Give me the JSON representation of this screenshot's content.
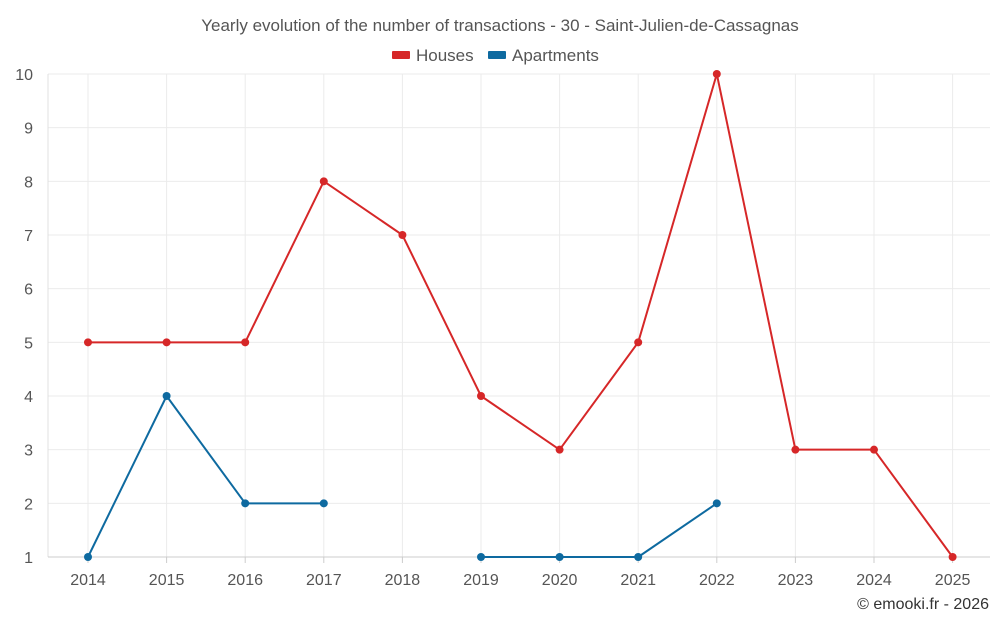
{
  "chart_data": {
    "type": "line",
    "title": "Yearly evolution of the number of transactions - 30 - Saint-Julien-de-Cassagnas",
    "categories": [
      "2014",
      "2015",
      "2016",
      "2017",
      "2018",
      "2019",
      "2020",
      "2021",
      "2022",
      "2023",
      "2024",
      "2025"
    ],
    "ylim": [
      1,
      10
    ],
    "yticks": [
      1,
      2,
      3,
      4,
      5,
      6,
      7,
      8,
      9,
      10
    ],
    "grid": true,
    "legend_position": "top-center",
    "series": [
      {
        "name": "Houses",
        "color": "#d62728",
        "values": [
          5,
          5,
          5,
          8,
          7,
          4,
          3,
          5,
          10,
          3,
          3,
          1
        ]
      },
      {
        "name": "Apartments",
        "color": "#0e6aa0",
        "values": [
          1,
          4,
          2,
          2,
          null,
          1,
          1,
          1,
          2,
          null,
          null,
          null
        ]
      }
    ]
  },
  "credit": "© emooki.fr - 2026"
}
